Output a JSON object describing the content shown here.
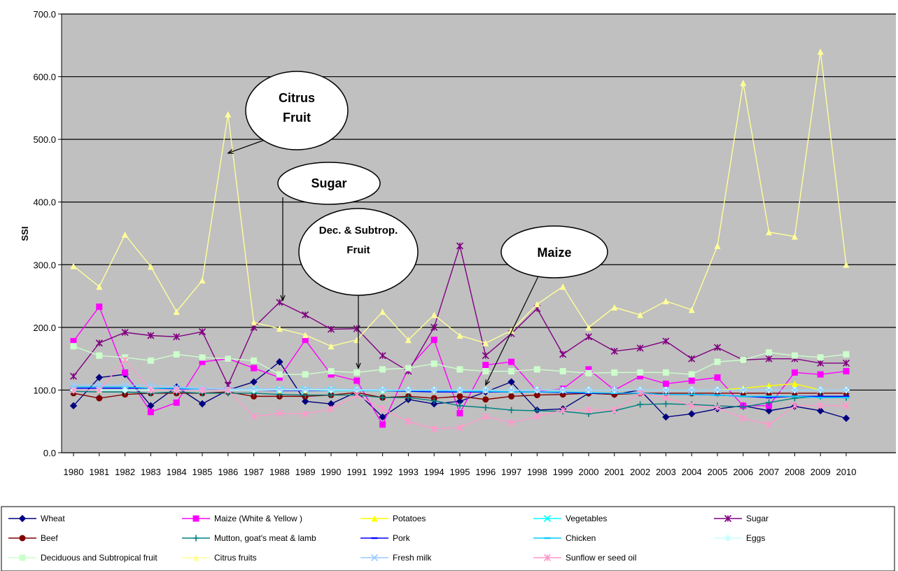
{
  "chart_data": {
    "type": "line",
    "xlabel": "",
    "ylabel": "SSI",
    "ylim": [
      0,
      700
    ],
    "yticks": [
      "700.0",
      "600.0",
      "500.0",
      "400.0",
      "300.0",
      "200.0",
      "100.0",
      "0.0"
    ],
    "grid": true,
    "background": "#c0c0c0",
    "legend_position": "bottom",
    "x": [
      "1980",
      "1981",
      "1982",
      "1983",
      "1984",
      "1985",
      "1986",
      "1987",
      "1988",
      "1989",
      "1990",
      "1991",
      "1992",
      "1993",
      "1994",
      "1995",
      "1996",
      "1997",
      "1998",
      "1999",
      "2000",
      "2001",
      "2002",
      "2003",
      "2004",
      "2005",
      "2006",
      "2007",
      "2008",
      "2009",
      "2010"
    ],
    "series": [
      {
        "name": "Wheat",
        "color": "#000080",
        "marker": "diamond",
        "values": [
          75,
          120,
          125,
          75,
          105,
          78,
          100,
          113,
          145,
          82,
          78,
          97,
          57,
          85,
          78,
          82,
          97,
          113,
          68,
          70,
          95,
          93,
          100,
          57,
          62,
          70,
          75,
          67,
          74,
          67,
          55
        ]
      },
      {
        "name": "Maize (White & Yellow )",
        "color": "#ff00ff",
        "marker": "square",
        "values": [
          178,
          233,
          128,
          65,
          80,
          145,
          150,
          135,
          120,
          180,
          125,
          115,
          45,
          135,
          180,
          63,
          140,
          145,
          98,
          102,
          133,
          100,
          122,
          110,
          115,
          120,
          75,
          75,
          128,
          125,
          130
        ]
      },
      {
        "name": "Potatoes",
        "color": "#ffff00",
        "marker": "triangle",
        "values": [
          100,
          100,
          100,
          100,
          100,
          100,
          100,
          100,
          100,
          100,
          100,
          100,
          100,
          100,
          100,
          100,
          100,
          100,
          100,
          100,
          100,
          100,
          100,
          100,
          100,
          100,
          103,
          107,
          110,
          100,
          100
        ]
      },
      {
        "name": "Vegetables",
        "color": "#00ffff",
        "marker": "x",
        "values": [
          100,
          100,
          100,
          100,
          100,
          100,
          100,
          100,
          100,
          100,
          100,
          100,
          100,
          100,
          100,
          100,
          100,
          100,
          100,
          100,
          100,
          100,
          100,
          100,
          100,
          100,
          100,
          100,
          100,
          100,
          100
        ]
      },
      {
        "name": "Sugar",
        "color": "#800080",
        "marker": "star",
        "values": [
          122,
          175,
          192,
          187,
          185,
          193,
          108,
          200,
          240,
          220,
          197,
          198,
          155,
          130,
          200,
          330,
          155,
          190,
          230,
          157,
          185,
          162,
          167,
          178,
          150,
          168,
          148,
          150,
          150,
          143,
          143
        ]
      },
      {
        "name": "Beef",
        "color": "#800000",
        "marker": "circle",
        "values": [
          95,
          87,
          93,
          95,
          95,
          95,
          97,
          90,
          90,
          90,
          92,
          96,
          88,
          90,
          87,
          90,
          85,
          90,
          92,
          93,
          95,
          93,
          95,
          95,
          95,
          95,
          95,
          95,
          95,
          95,
          95
        ]
      },
      {
        "name": "Mutton, goat's meat & lamb",
        "color": "#008080",
        "marker": "plus",
        "values": [
          98,
          97,
          97,
          95,
          97,
          95,
          95,
          95,
          93,
          92,
          92,
          92,
          88,
          88,
          83,
          75,
          72,
          68,
          67,
          66,
          62,
          67,
          77,
          78,
          77,
          75,
          73,
          80,
          87,
          90,
          88
        ]
      },
      {
        "name": "Pork",
        "color": "#0000ff",
        "marker": "dash",
        "values": [
          103,
          103,
          103,
          103,
          102,
          101,
          100,
          100,
          99,
          99,
          99,
          99,
          99,
          98,
          97,
          97,
          97,
          97,
          97,
          96,
          95,
          95,
          95,
          93,
          93,
          92,
          90,
          88,
          90,
          90,
          90
        ]
      },
      {
        "name": "Chicken",
        "color": "#00ccff",
        "marker": "dash",
        "values": [
          105,
          105,
          105,
          103,
          103,
          101,
          100,
          100,
          100,
          100,
          99,
          99,
          99,
          99,
          99,
          98,
          98,
          97,
          97,
          97,
          96,
          95,
          95,
          93,
          93,
          92,
          90,
          90,
          90,
          88,
          88
        ]
      },
      {
        "name": "Eggs",
        "color": "#ccffff",
        "marker": "diamond",
        "values": [
          100,
          100,
          100,
          100,
          100,
          100,
          100,
          100,
          100,
          100,
          100,
          100,
          100,
          100,
          100,
          100,
          100,
          100,
          100,
          100,
          100,
          100,
          100,
          100,
          100,
          100,
          100,
          100,
          100,
          100,
          100
        ]
      },
      {
        "name": "Deciduous and Subtropical fruit",
        "color": "#ccffcc",
        "marker": "square",
        "values": [
          170,
          155,
          152,
          147,
          157,
          152,
          150,
          147,
          125,
          125,
          130,
          128,
          133,
          135,
          142,
          133,
          130,
          130,
          133,
          130,
          127,
          128,
          128,
          128,
          125,
          145,
          148,
          160,
          155,
          152,
          157
        ]
      },
      {
        "name": "Citrus fruits",
        "color": "#ffff99",
        "marker": "triangle",
        "values": [
          298,
          265,
          348,
          297,
          225,
          275,
          540,
          208,
          198,
          188,
          170,
          180,
          225,
          180,
          220,
          187,
          175,
          195,
          237,
          265,
          200,
          232,
          220,
          242,
          228,
          330,
          590,
          352,
          345,
          640,
          300
        ]
      },
      {
        "name": "Fresh milk",
        "color": "#99ccff",
        "marker": "x",
        "values": [
          108,
          108,
          108,
          108,
          105,
          103,
          102,
          102,
          102,
          102,
          102,
          101,
          101,
          100,
          100,
          100,
          100,
          100,
          100,
          100,
          100,
          100,
          100,
          100,
          100,
          100,
          100,
          100,
          100,
          100,
          100
        ]
      },
      {
        "name": "Sunflow er seed oil",
        "color": "#ff99cc",
        "marker": "star",
        "values": [
          100,
          100,
          148,
          100,
          100,
          100,
          100,
          58,
          63,
          62,
          70,
          92,
          70,
          50,
          38,
          40,
          58,
          48,
          58,
          68,
          68,
          68,
          95,
          88,
          75,
          72,
          55,
          45,
          75,
          75,
          75
        ]
      }
    ],
    "annotations": [
      {
        "lines": [
          "Citrus",
          "Fruit"
        ],
        "target_year": "1986",
        "target_value": 478
      },
      {
        "lines": [
          "Sugar"
        ],
        "target_year": "1988",
        "target_value": 243
      },
      {
        "lines": [
          "Dec. & Subtrop.",
          "Fruit"
        ],
        "target_year": "1991",
        "target_value": 135
      },
      {
        "lines": [
          "Maize"
        ],
        "target_year": "1996",
        "target_value": 108
      }
    ]
  }
}
